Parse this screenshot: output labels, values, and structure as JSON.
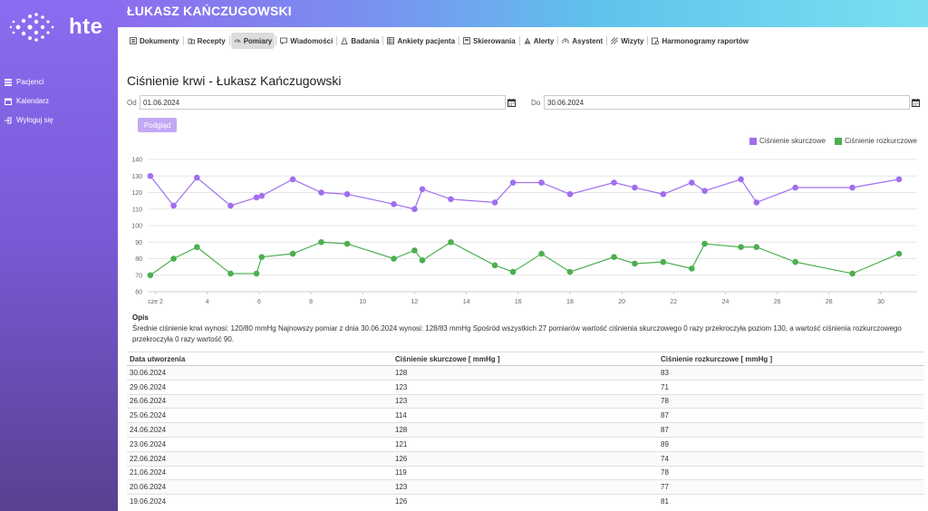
{
  "app": {
    "logo_text": "hte"
  },
  "sidebar": {
    "items": [
      {
        "label": "Pacjenci",
        "icon": "patients-icon"
      },
      {
        "label": "Kalendarz",
        "icon": "calendar-icon"
      },
      {
        "label": "Wyloguj się",
        "icon": "logout-icon"
      }
    ]
  },
  "header": {
    "title": "ŁUKASZ KAŃCZUGOWSKI"
  },
  "tabs": [
    {
      "label": "Dokumenty",
      "icon": "document-icon",
      "active": false
    },
    {
      "label": "Recepty",
      "icon": "prescription-icon",
      "active": false
    },
    {
      "label": "Pomiary",
      "icon": "gauge-icon",
      "active": true
    },
    {
      "label": "Wiadomości",
      "icon": "message-icon",
      "active": false
    },
    {
      "label": "Badania",
      "icon": "flask-icon",
      "active": false
    },
    {
      "label": "Ankiety pacjenta",
      "icon": "survey-icon",
      "active": false
    },
    {
      "label": "Skierowania",
      "icon": "referral-icon",
      "active": false
    },
    {
      "label": "Alerty",
      "icon": "alert-icon",
      "active": false
    },
    {
      "label": "Asystent",
      "icon": "assistant-icon",
      "active": false
    },
    {
      "label": "Wizyty",
      "icon": "visits-icon",
      "active": false
    },
    {
      "label": "Harmonogramy raportów",
      "icon": "schedule-icon",
      "active": false
    }
  ],
  "page": {
    "title": "Ciśnienie krwi - Łukasz Kańczugowski",
    "from_label": "Od",
    "from_value": "01.06.2024",
    "to_label": "Do",
    "to_value": "30.06.2024",
    "preview_label": "Podgląd"
  },
  "chart_data": {
    "type": "line",
    "x_unit": "day of June 2024",
    "xlim": [
      1.7,
      31.4
    ],
    "ylim": [
      60,
      140
    ],
    "y_ticks": [
      60,
      70,
      80,
      90,
      100,
      110,
      120,
      130,
      140
    ],
    "x_ticks": [
      {
        "value": 2,
        "label": "cze 2"
      },
      {
        "value": 4,
        "label": "4"
      },
      {
        "value": 6,
        "label": "6"
      },
      {
        "value": 8,
        "label": "8"
      },
      {
        "value": 10,
        "label": "10"
      },
      {
        "value": 12,
        "label": "12"
      },
      {
        "value": 14,
        "label": "14"
      },
      {
        "value": 16,
        "label": "16"
      },
      {
        "value": 18,
        "label": "18"
      },
      {
        "value": 20,
        "label": "20"
      },
      {
        "value": 22,
        "label": "22"
      },
      {
        "value": 24,
        "label": "24"
      },
      {
        "value": 26,
        "label": "26"
      },
      {
        "value": 28,
        "label": "28"
      },
      {
        "value": 30,
        "label": "30"
      }
    ],
    "grid": true,
    "legend_position": "top-right",
    "x": [
      1.8,
      2.7,
      3.6,
      4.9,
      5.9,
      6.1,
      7.3,
      8.4,
      9.4,
      11.2,
      12.0,
      12.3,
      13.4,
      15.1,
      15.8,
      16.9,
      18.0,
      19.7,
      20.5,
      21.6,
      22.7,
      23.2,
      24.6,
      25.2,
      26.7,
      28.9,
      30.7
    ],
    "series": [
      {
        "name": "Ciśnienie skurczowe",
        "color": "#a06ef0",
        "values": [
          130,
          112,
          129,
          112,
          117,
          118,
          128,
          120,
          119,
          113,
          110,
          122,
          116,
          114,
          126,
          126,
          119,
          126,
          123,
          119,
          126,
          121,
          128,
          114,
          123,
          123,
          128
        ]
      },
      {
        "name": "Ciśnienie rozkurczowe",
        "color": "#4caf50",
        "values": [
          70,
          80,
          87,
          71,
          71,
          81,
          83,
          90,
          89,
          80,
          85,
          79,
          90,
          76,
          72,
          83,
          72,
          81,
          77,
          78,
          74,
          89,
          87,
          87,
          78,
          71,
          83
        ]
      }
    ]
  },
  "opis": {
    "title": "Opis",
    "text": "Średnie ciśnienie krwi wynosi: 120/80 mmHg Najnowszy pomiar z dnia 30.06.2024 wynosi: 128/83 mmHg Spośród wszystkich 27 pomiarów wartość ciśnienia skurczowego 0 razy przekroczyła poziom 130, a wartość ciśnienia rozkurczowego przekroczyła 0 razy wartość 90."
  },
  "table": {
    "headers": [
      "Data utworzenia",
      "Ciśnienie skurczowe [ mmHg ]",
      "Ciśnienie rozkurczowe [ mmHg ]"
    ],
    "rows": [
      [
        "30.06.2024",
        "128",
        "83"
      ],
      [
        "29.06.2024",
        "123",
        "71"
      ],
      [
        "26.06.2024",
        "123",
        "78"
      ],
      [
        "25.06.2024",
        "114",
        "87"
      ],
      [
        "24.06.2024",
        "128",
        "87"
      ],
      [
        "23.06.2024",
        "121",
        "89"
      ],
      [
        "22.06.2024",
        "126",
        "74"
      ],
      [
        "21.06.2024",
        "119",
        "78"
      ],
      [
        "20.06.2024",
        "123",
        "77"
      ],
      [
        "19.06.2024",
        "126",
        "81"
      ]
    ]
  }
}
